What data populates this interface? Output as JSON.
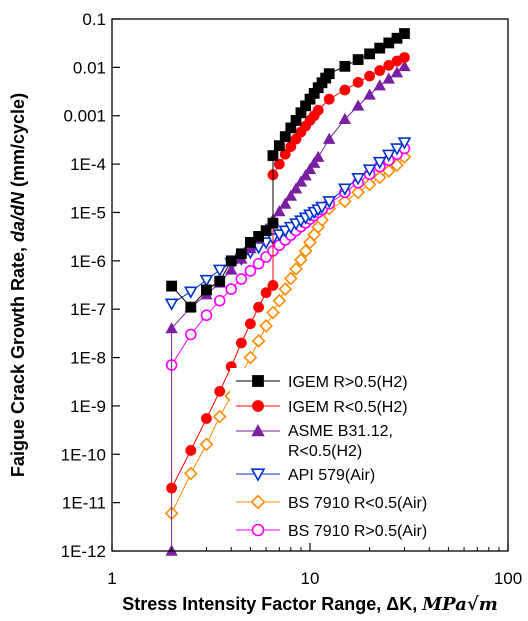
{
  "chart_data": {
    "type": "scatter",
    "title": "",
    "xlabel": "Stress Intensity Factor Range, ΔK, MPa√m",
    "xlabel_plain": "Stress Intensity Factor Range, ΔK, ",
    "xlabel_unit": "MPa√m",
    "ylabel": "Faigue Crack Growth Rate, da/dN (mm/cycle)",
    "ylabel_plain": "Faigue Crack Growth Rate, ",
    "ylabel_italic": "da/dN",
    "ylabel_unit": " (mm/cycle)",
    "x_scale": "log",
    "y_scale": "log",
    "xlim": [
      1,
      100
    ],
    "ylim": [
      1e-12,
      0.1
    ],
    "x_ticks": [
      1,
      10,
      100
    ],
    "x_tick_labels": [
      "1",
      "10",
      "100"
    ],
    "y_ticks": [
      1e-12,
      1e-11,
      1e-10,
      1e-09,
      1e-08,
      1e-07,
      1e-06,
      1e-05,
      0.0001,
      0.001,
      0.01,
      0.1
    ],
    "y_tick_labels": [
      "1E-12",
      "1E-11",
      "1E-10",
      "1E-9",
      "1E-8",
      "1E-7",
      "1E-6",
      "1E-5",
      "1E-4",
      "0.001",
      "0.01",
      "0.1"
    ],
    "grid": false,
    "legend_position": "bottom-right",
    "series": [
      {
        "name": "IGEM R>0.5(H2)",
        "color": "#000000",
        "marker": "square-filled",
        "x": [
          2,
          2.5,
          3,
          3.5,
          4,
          4.5,
          5,
          5.5,
          6,
          6.5,
          6.5,
          7,
          7.5,
          8,
          8.5,
          9,
          9.5,
          10,
          10.5,
          11,
          11.5,
          12,
          12.5,
          15,
          17.5,
          20,
          22.5,
          25,
          27.5,
          30
        ],
        "y": [
          3e-07,
          1.1e-07,
          2.5e-07,
          3.8e-07,
          1e-06,
          1.4e-06,
          2.4e-06,
          3.2e-06,
          4.2e-06,
          6e-06,
          0.00015,
          0.00024,
          0.00037,
          0.00056,
          0.0008,
          0.00115,
          0.0016,
          0.0022,
          0.0029,
          0.0038,
          0.0048,
          0.006,
          0.0074,
          0.0105,
          0.0145,
          0.019,
          0.025,
          0.032,
          0.04,
          0.05
        ]
      },
      {
        "name": "IGEM R<0.5(H2)",
        "color": "#ff0000",
        "marker": "circle-filled",
        "x": [
          2,
          2.5,
          3,
          3.5,
          4,
          4.5,
          5,
          5.5,
          6,
          6.5,
          6.5,
          7,
          7.5,
          8,
          8.5,
          9,
          9.5,
          10,
          10.5,
          11,
          12.5,
          15,
          17.5,
          20,
          22.5,
          25,
          27.5,
          30
        ],
        "y": [
          2e-11,
          1.2e-10,
          5.5e-10,
          2e-09,
          6.5e-09,
          2e-08,
          5e-08,
          1.1e-07,
          2.2e-07,
          3.1e-07,
          6e-05,
          0.0001,
          0.00016,
          0.00023,
          0.00033,
          0.00046,
          0.00061,
          0.0008,
          0.001,
          0.0013,
          0.0022,
          0.0034,
          0.0049,
          0.0066,
          0.0086,
          0.011,
          0.0135,
          0.016
        ]
      },
      {
        "name": "ASME B31.12, R<0.5(H2)",
        "name_line1": "ASME B31.12,",
        "name_line2": "R<0.5(H2)",
        "color": "#7a1fa2",
        "marker": "triangle-filled",
        "x": [
          2,
          2,
          2.5,
          3,
          3.5,
          4,
          4.5,
          5,
          5.5,
          6,
          6.5,
          7,
          7.5,
          8,
          8.5,
          9,
          9.5,
          10,
          10.5,
          11,
          12.5,
          15,
          17.5,
          20,
          22.5,
          25,
          27.5,
          30
        ],
        "y": [
          1e-12,
          4e-08,
          1.1e-07,
          2e-07,
          3.5e-07,
          6.5e-07,
          1.1e-06,
          1.8e-06,
          2.9e-06,
          4.5e-06,
          7e-06,
          1.05e-05,
          1.5e-05,
          2.2e-05,
          3.1e-05,
          4.3e-05,
          5.8e-05,
          7.8e-05,
          0.000105,
          0.00014,
          0.00033,
          0.00085,
          0.0016,
          0.0027,
          0.0042,
          0.0058,
          0.0078,
          0.0105
        ]
      },
      {
        "name": "API 579(Air)",
        "color": "#0033cc",
        "marker": "triangle-down-open",
        "x": [
          2,
          2.5,
          3,
          3.5,
          4,
          4.5,
          5,
          5.5,
          6,
          6.5,
          7,
          7.5,
          8,
          8.5,
          9,
          9.5,
          10,
          10.5,
          11,
          11.5,
          12.5,
          15,
          17.5,
          20,
          22.5,
          25,
          27.5,
          30
        ],
        "y": [
          1.3e-07,
          2.3e-07,
          4e-07,
          6.5e-07,
          9e-07,
          1.1e-06,
          1.5e-06,
          1.9e-06,
          2.4e-06,
          2.9e-06,
          3.5e-06,
          4.2e-06,
          5e-06,
          5.9e-06,
          6.8e-06,
          7.8e-06,
          9e-06,
          1.02e-05,
          1.15e-05,
          1.3e-05,
          1.7e-05,
          3.1e-05,
          5.1e-05,
          7.7e-05,
          0.00011,
          0.000155,
          0.00021,
          0.00028
        ]
      },
      {
        "name": "BS 7910 R<0.5(Air)",
        "color": "#ff8c00",
        "marker": "diamond-open",
        "x": [
          2,
          2.5,
          3,
          3.5,
          4,
          4.5,
          5,
          5.5,
          6,
          6.5,
          7,
          7.5,
          8,
          8.5,
          9,
          9.5,
          10,
          10.5,
          11,
          11.5,
          12.5,
          15,
          17.5,
          20,
          22.5,
          25,
          27.5,
          30
        ],
        "y": [
          6e-12,
          4e-11,
          1.6e-10,
          6e-10,
          1.6e-09,
          4.5e-09,
          1e-08,
          2.2e-08,
          4.5e-08,
          8.5e-08,
          1.5e-07,
          2.6e-07,
          4.3e-07,
          6.8e-07,
          1.05e-06,
          1.6e-06,
          2.4e-06,
          3.5e-06,
          5e-06,
          7e-06,
          1.2e-05,
          1.7e-05,
          2.6e-05,
          3.8e-05,
          5.3e-05,
          7.2e-05,
          9.5e-05,
          0.00014
        ]
      },
      {
        "name": "BS 7910 R>0.5(Air)",
        "color": "#ff00ff",
        "marker": "circle-open",
        "x": [
          2,
          2.5,
          3,
          3.5,
          4,
          4.5,
          5,
          5.5,
          6,
          6.5,
          7,
          7.5,
          8,
          8.5,
          9,
          9.5,
          10,
          10.5,
          11,
          11.5,
          12.5,
          15,
          17.5,
          20,
          22.5,
          25,
          27.5,
          30
        ],
        "y": [
          7e-09,
          3e-08,
          7.5e-08,
          1.5e-07,
          2.6e-07,
          4.2e-07,
          6.2e-07,
          8.7e-07,
          1.2e-06,
          1.6e-06,
          2.1e-06,
          2.7e-06,
          3.4e-06,
          4.2e-06,
          5.1e-06,
          6.1e-06,
          7.3e-06,
          8.6e-06,
          1e-05,
          1.15e-05,
          1.5e-05,
          2.6e-05,
          4.1e-05,
          6.2e-05,
          8.9e-05,
          0.00012,
          0.00016,
          0.00021
        ]
      }
    ]
  }
}
